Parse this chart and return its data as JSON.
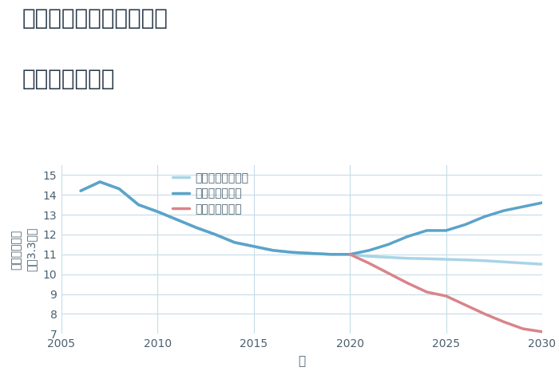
{
  "title_line1": "三重県津市白山町垣内の",
  "title_line2": "土地の価格推移",
  "xlabel": "年",
  "ylim": [
    7,
    15.5
  ],
  "xlim": [
    2005,
    2030
  ],
  "yticks": [
    7,
    8,
    9,
    10,
    11,
    12,
    13,
    14,
    15
  ],
  "xticks": [
    2005,
    2010,
    2015,
    2020,
    2025,
    2030
  ],
  "good_scenario": {
    "x": [
      2006,
      2007,
      2008,
      2009,
      2010,
      2011,
      2012,
      2013,
      2014,
      2015,
      2016,
      2017,
      2018,
      2019,
      2020,
      2021,
      2022,
      2023,
      2024,
      2025,
      2026,
      2027,
      2028,
      2029,
      2030
    ],
    "y": [
      14.2,
      14.65,
      14.3,
      13.5,
      13.15,
      12.75,
      12.35,
      12.0,
      11.6,
      11.4,
      11.2,
      11.1,
      11.05,
      11.0,
      11.0,
      11.2,
      11.5,
      11.9,
      12.2,
      12.2,
      12.5,
      12.9,
      13.2,
      13.4,
      13.6
    ],
    "color": "#5ba3c9",
    "label": "グッドシナリオ",
    "linewidth": 2.5
  },
  "bad_scenario": {
    "x": [
      2020,
      2021,
      2022,
      2023,
      2024,
      2025,
      2026,
      2027,
      2028,
      2029,
      2030
    ],
    "y": [
      11.0,
      10.55,
      10.05,
      9.55,
      9.1,
      8.9,
      8.45,
      8.0,
      7.6,
      7.25,
      7.1
    ],
    "color": "#d9848a",
    "label": "バッドシナリオ",
    "linewidth": 2.5
  },
  "normal_scenario": {
    "x": [
      2006,
      2007,
      2008,
      2009,
      2010,
      2011,
      2012,
      2013,
      2014,
      2015,
      2016,
      2017,
      2018,
      2019,
      2020,
      2021,
      2022,
      2023,
      2024,
      2025,
      2026,
      2027,
      2028,
      2029,
      2030
    ],
    "y": [
      14.2,
      14.65,
      14.3,
      13.5,
      13.15,
      12.75,
      12.35,
      12.0,
      11.6,
      11.4,
      11.2,
      11.1,
      11.05,
      11.0,
      11.0,
      10.9,
      10.85,
      10.8,
      10.78,
      10.75,
      10.72,
      10.68,
      10.62,
      10.56,
      10.5
    ],
    "color": "#a8d4e6",
    "label": "ノーマルシナリオ",
    "linewidth": 2.5
  },
  "background_color": "#ffffff",
  "grid_color": "#c5dce8",
  "title_color": "#2a3a4a",
  "axis_color": "#4a6070",
  "title_fontsize": 20,
  "legend_fontsize": 10,
  "tick_fontsize": 10,
  "ylabel_top": "単価（万円）",
  "ylabel_bottom": "坪（3.3㎡）"
}
